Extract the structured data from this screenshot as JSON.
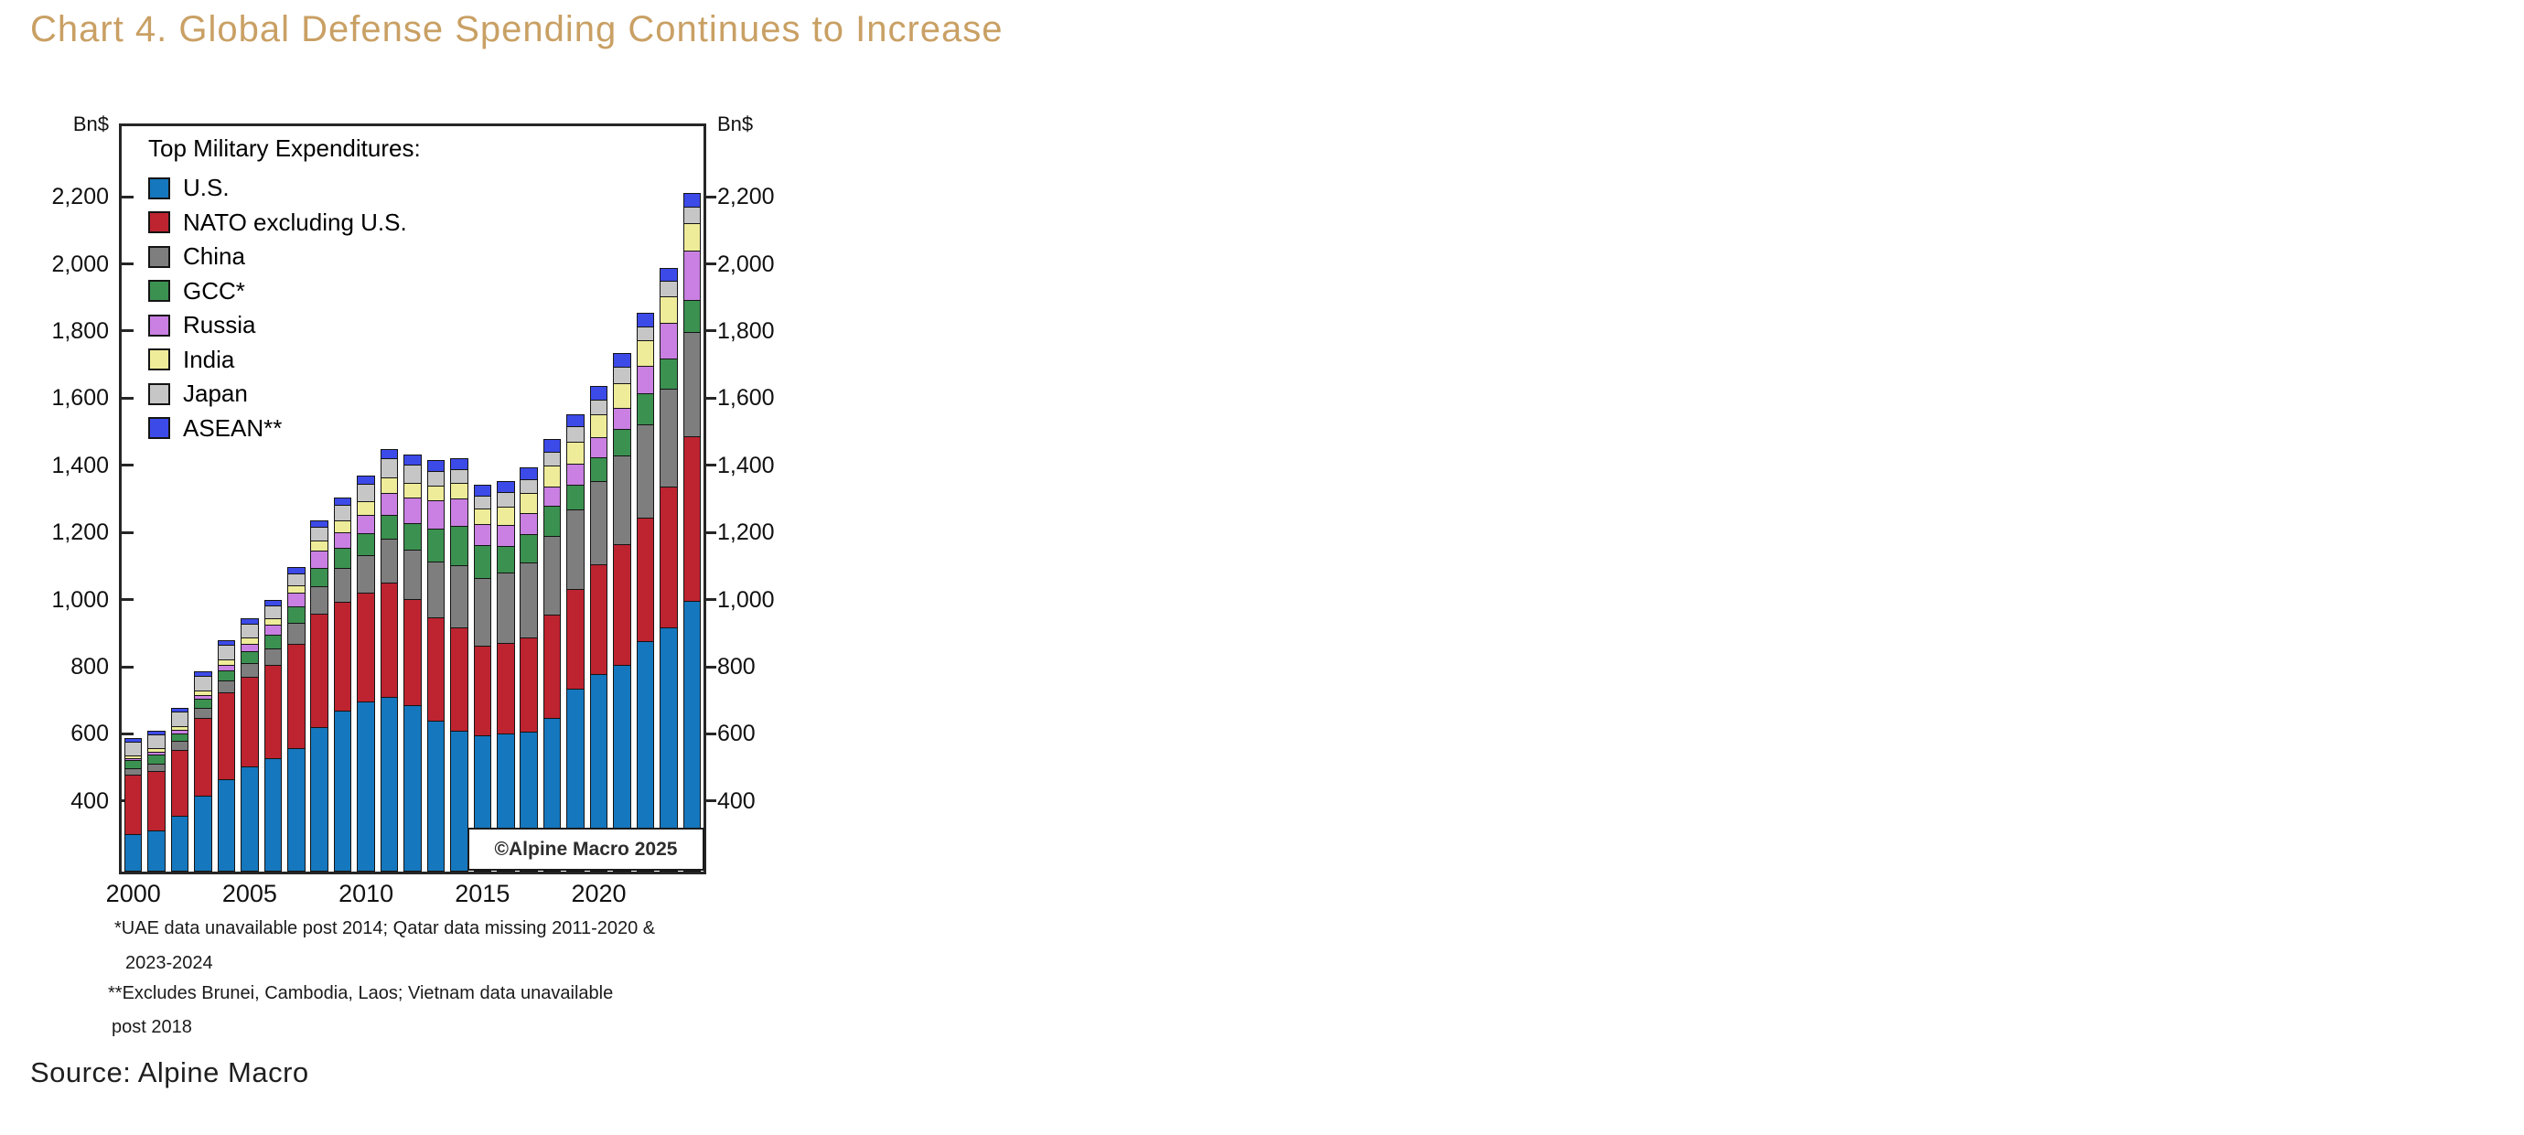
{
  "page": {
    "title": "Chart 4. Global Defense Spending Continues to Increase",
    "source": "Source: Alpine Macro",
    "copyright": "©Alpine Macro 2025"
  },
  "footnotes": {
    "lines": [
      "*UAE data unavailable post 2014; Qatar data missing 2011-2020 &",
      "2023-2024",
      "**Excludes Brunei, Cambodia, Laos; Vietnam data unavailable",
      "post 2018"
    ]
  },
  "colors": {
    "title": "#c9a064",
    "frame": "#262626",
    "text": "#111111"
  },
  "chart_data": {
    "type": "bar",
    "stacked": true,
    "unit_label": "Bn$",
    "legend_title": "Top Military Expenditures:",
    "legend_position": "top-left-inside",
    "grid": false,
    "x": [
      2000,
      2001,
      2002,
      2003,
      2004,
      2005,
      2006,
      2007,
      2008,
      2009,
      2010,
      2011,
      2012,
      2013,
      2014,
      2015,
      2016,
      2017,
      2018,
      2019,
      2020,
      2021,
      2022,
      2023,
      2024
    ],
    "x_tick_labels": [
      "2000",
      "2005",
      "2010",
      "2015",
      "2020"
    ],
    "x_tick_indices": [
      0,
      5,
      10,
      15,
      20
    ],
    "y_axis": {
      "label": "Bn$",
      "min": 190,
      "max": 2410,
      "tick_values": [
        400,
        600,
        800,
        1000,
        1200,
        1400,
        1600,
        1800,
        2000,
        2200
      ],
      "tick_labels": [
        "400",
        "600",
        "800",
        "1,000",
        "1,200",
        "1,400",
        "1,600",
        "1,800",
        "2,000",
        "2,200"
      ],
      "sides": [
        "left",
        "right"
      ]
    },
    "series": [
      {
        "name": "U.S.",
        "color": "#1577BD",
        "values": [
          301,
          313,
          357,
          415,
          464,
          503,
          527,
          557,
          621,
          669,
          698,
          711,
          685,
          640,
          610,
          596,
          600,
          606,
          649,
          734,
          778,
          806,
          877,
          916,
          997
        ]
      },
      {
        "name": "NATO excluding U.S.",
        "color": "#BE2330",
        "values": [
          183,
          181,
          199,
          238,
          265,
          272,
          283,
          315,
          342,
          328,
          326,
          345,
          320,
          312,
          311,
          272,
          274,
          286,
          310,
          302,
          332,
          363,
          372,
          425,
          495
        ]
      },
      {
        "name": "China",
        "color": "#7E7E7E",
        "values": [
          22,
          27,
          31,
          33,
          38,
          44,
          52,
          66,
          84,
          105,
          118,
          134,
          153,
          171,
          191,
          204,
          216,
          228,
          240,
          240,
          252,
          270,
          280,
          296,
          314
        ]
      },
      {
        "name": "GCC*",
        "color": "#3B9150",
        "values": [
          28,
          29,
          28,
          30,
          34,
          40,
          45,
          54,
          60,
          64,
          68,
          74,
          81,
          102,
          120,
          104,
          81,
          87,
          92,
          79,
          75,
          83,
          97,
          94,
          100
        ]
      },
      {
        "name": "Russia",
        "color": "#C980E2",
        "values": [
          9,
          12,
          14,
          17,
          21,
          27,
          35,
          44,
          56,
          52,
          59,
          70,
          81,
          88,
          85,
          66,
          69,
          67,
          61,
          65,
          62,
          66,
          86,
          109,
          149
        ]
      },
      {
        "name": "India",
        "color": "#EEEC99",
        "values": [
          14,
          15,
          15,
          17,
          21,
          23,
          24,
          28,
          33,
          39,
          46,
          50,
          47,
          47,
          51,
          51,
          57,
          65,
          67,
          72,
          73,
          77,
          81,
          84,
          86
        ]
      },
      {
        "name": "Japan",
        "color": "#C6C6C6",
        "values": [
          45,
          47,
          47,
          47,
          46,
          44,
          41,
          40,
          46,
          51,
          55,
          61,
          60,
          49,
          46,
          41,
          47,
          45,
          47,
          48,
          49,
          54,
          46,
          50,
          55
        ]
      },
      {
        "name": "ASEAN**",
        "color": "#3C4AE8",
        "values": [
          14,
          14,
          16,
          17,
          18,
          19,
          20,
          23,
          24,
          26,
          29,
          31,
          33,
          35,
          35,
          37,
          39,
          39,
          41,
          42,
          43,
          43,
          43,
          43,
          44
        ]
      }
    ]
  }
}
